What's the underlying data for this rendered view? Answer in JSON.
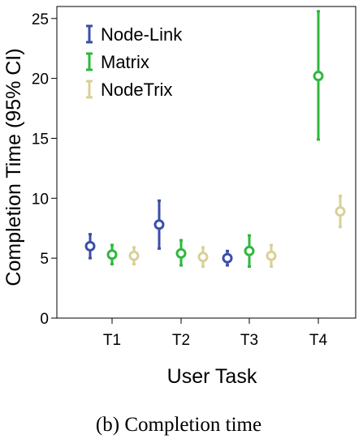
{
  "chart_data": {
    "type": "scatter",
    "subtype": "errorbar",
    "categories": [
      "T1",
      "T2",
      "T3",
      "T4"
    ],
    "xlabel": "User Task",
    "ylabel": "Completion Time (95% CI)",
    "ylim": [
      0,
      26
    ],
    "yticks": [
      0,
      5,
      10,
      15,
      20,
      25
    ],
    "grid": false,
    "legend_position": "top-left",
    "series": [
      {
        "name": "Node-Link",
        "color": "#3b4ea8",
        "means": [
          6.0,
          7.8,
          5.0,
          null
        ],
        "lower": [
          5.0,
          5.8,
          4.4,
          null
        ],
        "upper": [
          7.0,
          9.8,
          5.6,
          null
        ]
      },
      {
        "name": "Matrix",
        "color": "#2eb83e",
        "means": [
          5.3,
          5.4,
          5.6,
          20.2
        ],
        "lower": [
          4.5,
          4.4,
          4.3,
          14.9
        ],
        "upper": [
          6.1,
          6.5,
          6.9,
          25.6
        ]
      },
      {
        "name": "NodeTrix",
        "color": "#d8d09a",
        "means": [
          5.2,
          5.1,
          5.2,
          8.9
        ],
        "lower": [
          4.5,
          4.3,
          4.3,
          7.6
        ],
        "upper": [
          5.9,
          5.9,
          6.1,
          10.2
        ]
      }
    ]
  },
  "caption": "(b)  Completion time"
}
